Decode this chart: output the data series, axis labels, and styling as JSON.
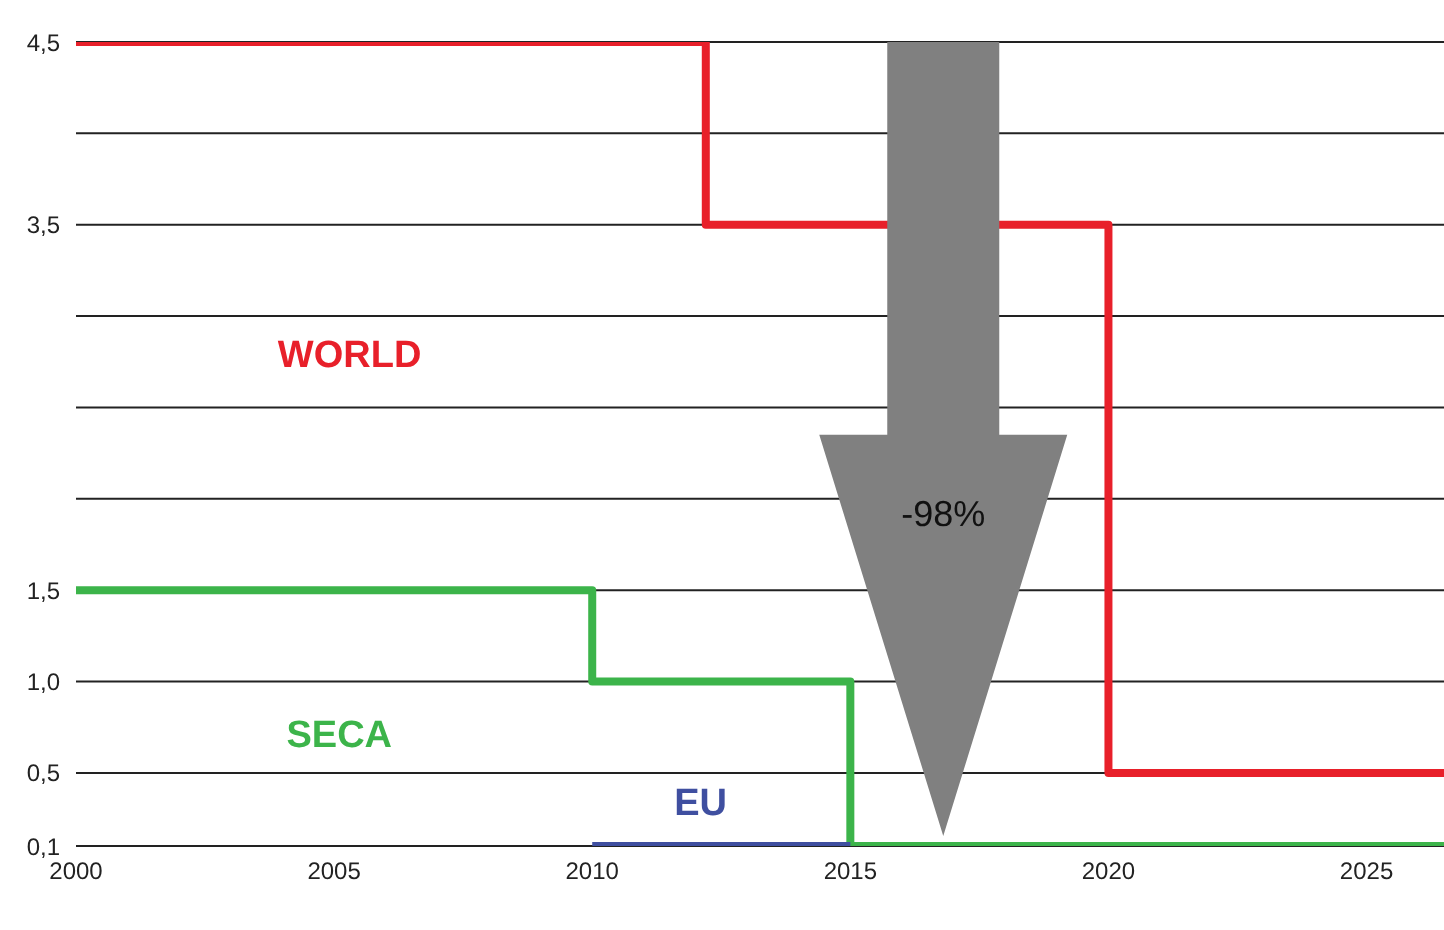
{
  "chart_data": {
    "type": "step",
    "xlim": [
      2000,
      2026.5
    ],
    "xticks": [
      2000,
      2005,
      2010,
      2015,
      2020,
      2025
    ],
    "ylim": [
      0.1,
      4.5
    ],
    "yticks": [
      {
        "value": 0.1,
        "label": "0,1"
      },
      {
        "value": 0.5,
        "label": "0,5"
      },
      {
        "value": 1,
        "label": "1,0"
      },
      {
        "value": 1.5,
        "label": "1,5"
      },
      {
        "value": 2,
        "label": null
      },
      {
        "value": 2.5,
        "label": null
      },
      {
        "value": 3,
        "label": null
      },
      {
        "value": 3.5,
        "label": "3,5"
      },
      {
        "value": 4,
        "label": null
      },
      {
        "value": 4.5,
        "label": "4,5"
      }
    ],
    "grid": "y",
    "marker": "none",
    "line_style": "solid",
    "series": [
      {
        "name": "WORLD",
        "color": "#e8202a",
        "x": [
          2000,
          2012.2,
          2020,
          2026.5
        ],
        "values": [
          4.5,
          3.5,
          0.5,
          0.5
        ]
      },
      {
        "name": "SECA",
        "color": "#3cb44a",
        "x": [
          2000,
          2010,
          2015,
          2026.5
        ],
        "values": [
          1.5,
          1,
          0.1,
          0.1
        ]
      },
      {
        "name": "EU",
        "color": "#3f4fa0",
        "x": [
          2010,
          2015
        ],
        "values": [
          0.1,
          0.1
        ]
      }
    ],
    "annotations": [
      "-98%"
    ]
  }
}
